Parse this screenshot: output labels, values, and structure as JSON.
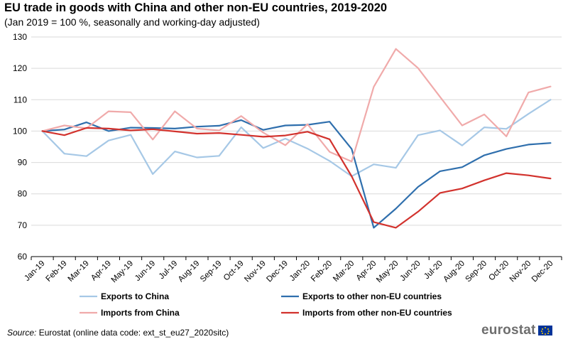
{
  "title": "EU trade in goods with China and other non-EU countries, 2019-2020",
  "subtitle": "(Jan 2019 = 100 %, seasonally and working-day adjusted)",
  "source_label": "Source:",
  "source_text": " Eurostat (online data code: ext_st_eu27_2020sitc)",
  "logo_text": "eurostat",
  "chart_data": {
    "type": "line",
    "title": "EU trade in goods with China and other non-EU countries, 2019-2020",
    "subtitle": "(Jan 2019 = 100 %, seasonally and working-day adjusted)",
    "xlabel": "",
    "ylabel": "",
    "ylim": [
      60,
      130
    ],
    "yticks": [
      60,
      70,
      80,
      90,
      100,
      110,
      120,
      130
    ],
    "grid": "horizontal",
    "legend_position": "bottom",
    "categories": [
      "Jan-19",
      "Feb-19",
      "Mar-19",
      "Apr-19",
      "May-19",
      "Jun-19",
      "Jul-19",
      "Aug-19",
      "Sep-19",
      "Oct-19",
      "Nov-19",
      "Dec-19",
      "Jan-20",
      "Feb-20",
      "Mar-20",
      "Apr-20",
      "May-20",
      "Jun-20",
      "Jul-20",
      "Aug-20",
      "Sep-20",
      "Oct-20",
      "Nov-20",
      "Dec-20"
    ],
    "series": [
      {
        "name": "Exports to China",
        "color": "#a6c8e6",
        "values": [
          100,
          92.8,
          92.0,
          97.0,
          98.8,
          86.3,
          93.5,
          91.6,
          92.1,
          101.2,
          94.6,
          97.6,
          94.4,
          90.5,
          85.6,
          89.4,
          88.3,
          98.7,
          100.2,
          95.4,
          101.2,
          100.7,
          105.5,
          110.0
        ]
      },
      {
        "name": "Exports to other non-EU countries",
        "color": "#2f6fad",
        "values": [
          100,
          100.5,
          102.8,
          100.0,
          101.1,
          101.0,
          100.8,
          101.4,
          101.7,
          103.5,
          100.4,
          101.8,
          102.0,
          103.0,
          94.3,
          69.2,
          75.3,
          82.2,
          87.2,
          88.5,
          92.3,
          94.3,
          95.7,
          96.2
        ]
      },
      {
        "name": "Imports from China",
        "color": "#f0aaaa",
        "values": [
          100,
          101.8,
          100.9,
          106.3,
          106.0,
          97.3,
          106.3,
          100.8,
          100.2,
          104.8,
          99.5,
          95.5,
          102.2,
          93.4,
          90.3,
          114.1,
          126.2,
          120.1,
          110.9,
          101.8,
          105.3,
          98.3,
          112.3,
          114.2
        ]
      },
      {
        "name": "Imports from other non-EU countries",
        "color": "#d2322d",
        "values": [
          100,
          98.7,
          101.0,
          100.8,
          100.2,
          100.6,
          99.9,
          99.2,
          99.4,
          98.8,
          98.2,
          98.6,
          99.8,
          97.4,
          85.6,
          71.0,
          69.2,
          74.3,
          80.3,
          81.7,
          84.3,
          86.6,
          85.9,
          84.9
        ]
      }
    ]
  }
}
